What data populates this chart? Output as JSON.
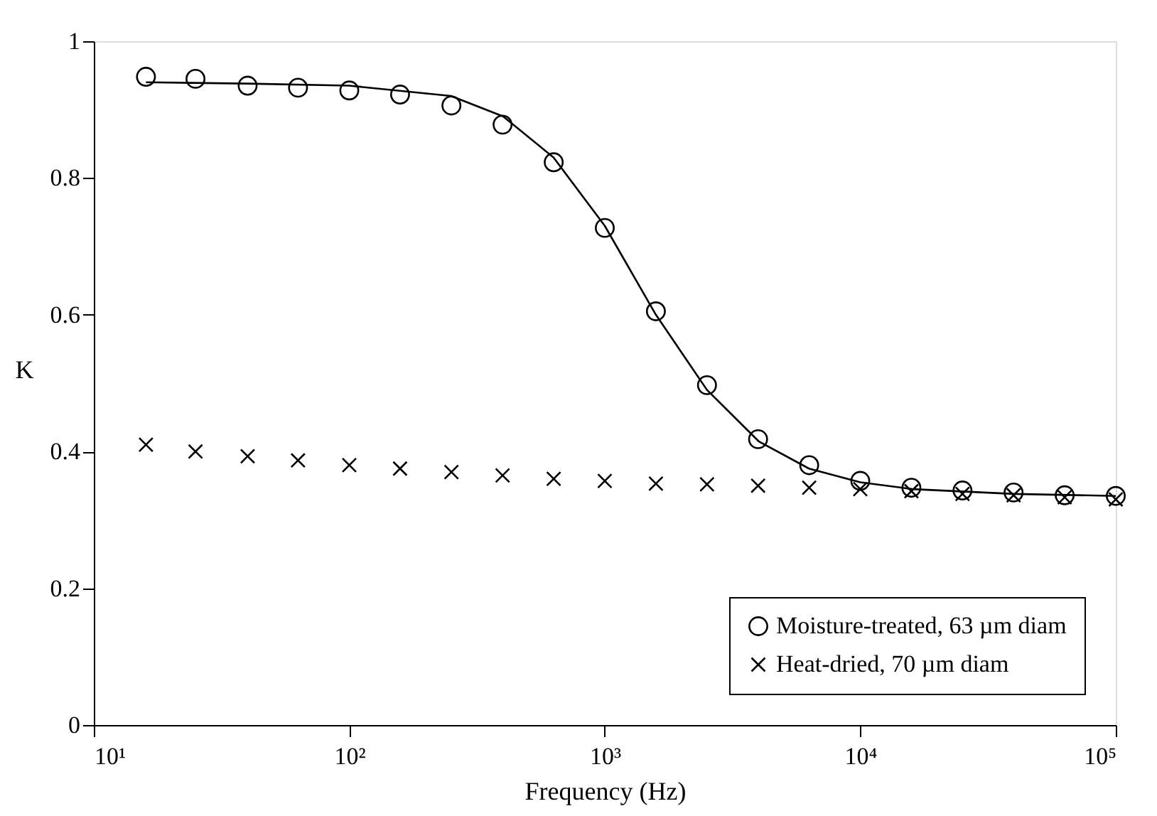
{
  "chart_data": {
    "type": "scatter",
    "xlabel": "Frequency (Hz)",
    "ylabel": "K",
    "log": "x",
    "xlim": [
      10,
      100000
    ],
    "ylim": [
      0,
      1
    ],
    "xticks": [
      {
        "value": 10,
        "label": "10¹"
      },
      {
        "value": 100,
        "label": "10²"
      },
      {
        "value": 1000,
        "label": "10³"
      },
      {
        "value": 10000,
        "label": "10⁴"
      },
      {
        "value": 100000,
        "label": "10⁵"
      }
    ],
    "yticks": [
      0,
      0.2,
      0.4,
      0.6,
      0.8,
      1
    ],
    "x": [
      16,
      25,
      40,
      63,
      100,
      158,
      251,
      398,
      631,
      1000,
      1585,
      2512,
      3981,
      6310,
      10000,
      15849,
      25119,
      39811,
      63096,
      100000
    ],
    "legend": "bottom right",
    "grid": false,
    "series": [
      {
        "name": "Moisture-treated, 63 µm diam",
        "color": "#000000",
        "marker": "circle",
        "values": [
          0.948,
          0.945,
          0.935,
          0.932,
          0.928,
          0.922,
          0.906,
          0.878,
          0.823,
          0.727,
          0.605,
          0.497,
          0.418,
          0.38,
          0.357,
          0.347,
          0.343,
          0.34,
          0.336,
          0.335
        ]
      },
      {
        "name": "Heat-dried, 70 µm diam",
        "color": "#000000",
        "marker": "cross",
        "values": [
          0.41,
          0.4,
          0.393,
          0.387,
          0.38,
          0.375,
          0.37,
          0.365,
          0.36,
          0.357,
          0.353,
          0.352,
          0.35,
          0.347,
          0.345,
          0.342,
          0.338,
          0.336,
          0.333,
          0.33
        ]
      },
      {
        "type": "line",
        "color": "#000000",
        "marker": "none",
        "line_style": "solid",
        "x": [
          16,
          40,
          100,
          250,
          400,
          630,
          1000,
          1585,
          2512,
          4000,
          6300,
          10000,
          16000,
          40000,
          100000
        ],
        "values": [
          0.94,
          0.938,
          0.935,
          0.92,
          0.89,
          0.83,
          0.73,
          0.6,
          0.49,
          0.415,
          0.375,
          0.355,
          0.345,
          0.338,
          0.335
        ]
      }
    ]
  }
}
